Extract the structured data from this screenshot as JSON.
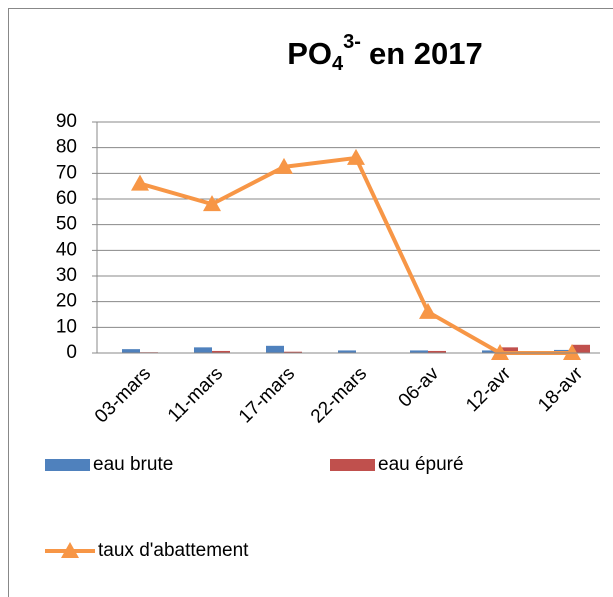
{
  "chart_data": {
    "type": "bar-line",
    "title": [
      "PO",
      "4",
      "3-",
      "en 2017"
    ],
    "categories": [
      "03-mars",
      "11-mars",
      "17-mars",
      "22-mars",
      "06-av",
      "12-avr",
      "18-avr"
    ],
    "series": [
      {
        "name": "eau brute",
        "type": "bar",
        "color": "#4f81bd",
        "values": [
          1.5,
          2.2,
          2.8,
          1.0,
          1.0,
          1.0,
          1.2
        ]
      },
      {
        "name": "eau épuré",
        "type": "bar",
        "color": "#c0504d",
        "values": [
          0.3,
          0.8,
          0.5,
          0.1,
          0.8,
          2.2,
          3.2
        ]
      },
      {
        "name": "taux d'abattement",
        "type": "line",
        "color": "#f79646",
        "values": [
          66,
          58,
          72.5,
          76,
          16,
          0,
          0
        ]
      }
    ],
    "ylim": [
      0,
      90
    ],
    "yticks": [
      0,
      10,
      20,
      30,
      40,
      50,
      60,
      70,
      80,
      90
    ],
    "grid": true
  }
}
